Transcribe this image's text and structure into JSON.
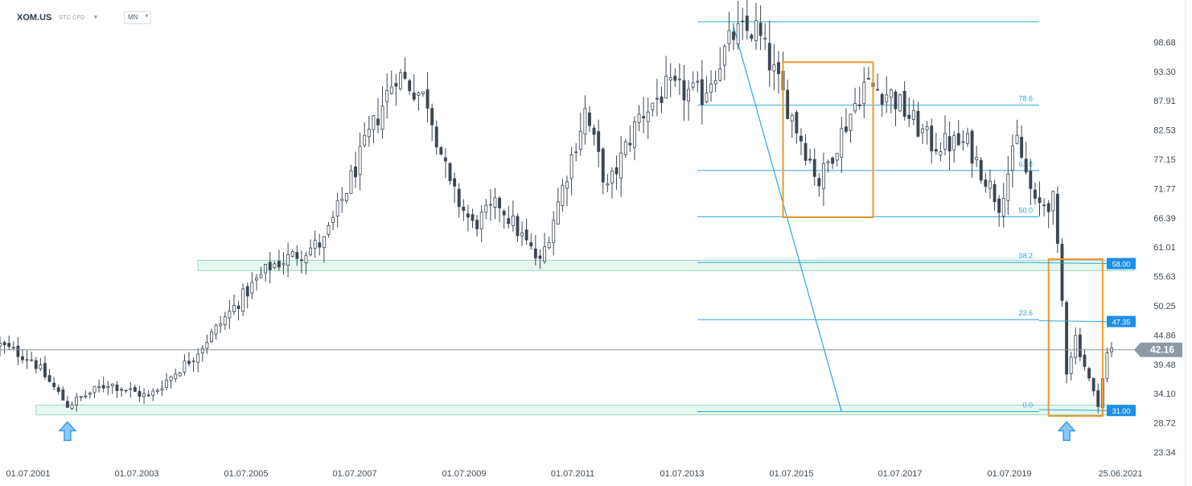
{
  "header": {
    "symbol": "XOM.US",
    "instrument_type": "STC CFD",
    "timeframe": "MN",
    "caret_icon": "chevron-down-icon"
  },
  "colors": {
    "bull_candle": "#ffffff",
    "bear_candle": "#3c4652",
    "fib_line": "#2aa9d8",
    "zone_fill": "#e6f7f0",
    "zone_border": "#9ed8c0",
    "box_orange": "#f0962e",
    "tag_blue": "#1e8fe6",
    "price_tag": "#8d9aa6",
    "arrow_blue": "#3d9bf0"
  },
  "chart_data": {
    "type": "candlestick",
    "timeframe": "monthly",
    "y_ticks": [
      "98.68",
      "93.30",
      "87.91",
      "82.53",
      "77.15",
      "71.77",
      "66.39",
      "61.01",
      "55.63",
      "50.25",
      "44.86",
      "39.48",
      "34.10",
      "28.72",
      "23.34"
    ],
    "x_ticks": [
      "01.07.2001",
      "01.07.2003",
      "01.07.2005",
      "01.07.2007",
      "01.07.2009",
      "01.07.2011",
      "01.07.2013",
      "01.07.2015",
      "01.07.2017",
      "01.07.2019",
      "25.06.2021"
    ],
    "ylim": [
      23.34,
      104.06
    ],
    "xlim": [
      "2000-06",
      "2021-06"
    ],
    "current_price": "42.16",
    "fibonacci": {
      "from_high": 102.5,
      "to_low": 30.8,
      "levels": [
        {
          "label": "78.6",
          "value": 87.1
        },
        {
          "label": "61.8",
          "value": 75.1
        },
        {
          "label": "50.0",
          "value": 66.6
        },
        {
          "label": "38.2",
          "value": 58.2
        },
        {
          "label": "23.6",
          "value": 47.7
        },
        {
          "label": "0.0",
          "value": 30.8
        }
      ]
    },
    "price_tags": [
      {
        "label": "58.00",
        "value": 58.0
      },
      {
        "label": "47.35",
        "value": 47.35
      },
      {
        "label": "31.00",
        "value": 31.0
      }
    ],
    "support_zones": [
      {
        "from": "2004-02",
        "to": "2021-06",
        "low": 56.7,
        "high": 58.6
      },
      {
        "from": "2001-02",
        "to": "2021-06",
        "low": 30.2,
        "high": 32.0
      }
    ],
    "highlight_boxes": [
      {
        "from": "2014-12",
        "to": "2016-08",
        "low": 66.5,
        "high": 95.0
      },
      {
        "from": "2019-11",
        "to": "2020-11",
        "low": 30.0,
        "high": 58.8
      }
    ],
    "arrows": [
      {
        "date": "2001-09",
        "value": 29.5
      },
      {
        "date": "2020-03",
        "value": 29.5
      }
    ],
    "trendline": {
      "from_date": "2014-01",
      "from_value": 101.5,
      "to_date": "2016-01",
      "to_value": 30.8
    },
    "anchors": [
      {
        "date": "2000-06",
        "value": 43.0
      },
      {
        "date": "2001-01",
        "value": 40.5
      },
      {
        "date": "2001-09",
        "value": 32.0
      },
      {
        "date": "2002-06",
        "value": 36.0
      },
      {
        "date": "2003-03",
        "value": 33.5
      },
      {
        "date": "2004-01",
        "value": 41.0
      },
      {
        "date": "2005-01",
        "value": 53.0
      },
      {
        "date": "2005-06",
        "value": 57.5
      },
      {
        "date": "2006-06",
        "value": 62.0
      },
      {
        "date": "2007-10",
        "value": 93.0
      },
      {
        "date": "2008-05",
        "value": 88.0
      },
      {
        "date": "2008-10",
        "value": 72.0
      },
      {
        "date": "2009-03",
        "value": 65.0
      },
      {
        "date": "2009-09",
        "value": 69.0
      },
      {
        "date": "2010-06",
        "value": 58.0
      },
      {
        "date": "2010-11",
        "value": 72.0
      },
      {
        "date": "2011-04",
        "value": 86.0
      },
      {
        "date": "2011-09",
        "value": 71.5
      },
      {
        "date": "2012-04",
        "value": 85.0
      },
      {
        "date": "2012-10",
        "value": 90.0
      },
      {
        "date": "2013-06",
        "value": 89.0
      },
      {
        "date": "2014-01",
        "value": 100.0
      },
      {
        "date": "2014-06",
        "value": 101.0
      },
      {
        "date": "2015-01",
        "value": 87.0
      },
      {
        "date": "2015-08",
        "value": 73.0
      },
      {
        "date": "2016-06",
        "value": 91.0
      },
      {
        "date": "2016-12",
        "value": 89.0
      },
      {
        "date": "2017-09",
        "value": 80.0
      },
      {
        "date": "2018-05",
        "value": 80.0
      },
      {
        "date": "2018-12",
        "value": 69.0
      },
      {
        "date": "2019-04",
        "value": 80.5
      },
      {
        "date": "2019-08",
        "value": 68.5
      },
      {
        "date": "2019-12",
        "value": 69.5
      },
      {
        "date": "2020-02",
        "value": 51.0
      },
      {
        "date": "2020-03",
        "value": 38.5
      },
      {
        "date": "2020-05",
        "value": 44.5
      },
      {
        "date": "2020-09",
        "value": 34.0
      },
      {
        "date": "2020-10",
        "value": 32.6
      },
      {
        "date": "2020-12",
        "value": 41.2
      },
      {
        "date": "2021-01",
        "value": 42.16
      }
    ]
  }
}
